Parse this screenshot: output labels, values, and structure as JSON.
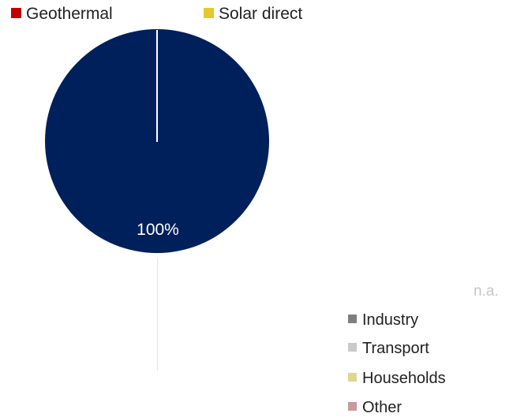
{
  "legend_top": [
    {
      "label": "Geothermal",
      "color": "#c00000"
    },
    {
      "label": "Solar direct",
      "color": "#e3c92a"
    }
  ],
  "chart_data": {
    "type": "pie",
    "slices": [
      {
        "value": 100,
        "label": "100%",
        "color": "#00205b"
      }
    ]
  },
  "na_label": "n.a.",
  "legend_right": [
    {
      "label": "Industry",
      "color": "#7f7f7f"
    },
    {
      "label": "Transport",
      "color": "#c9c9c9"
    },
    {
      "label": "Households",
      "color": "#ddd88e"
    },
    {
      "label": "Other",
      "color": "#c99a9a"
    }
  ]
}
